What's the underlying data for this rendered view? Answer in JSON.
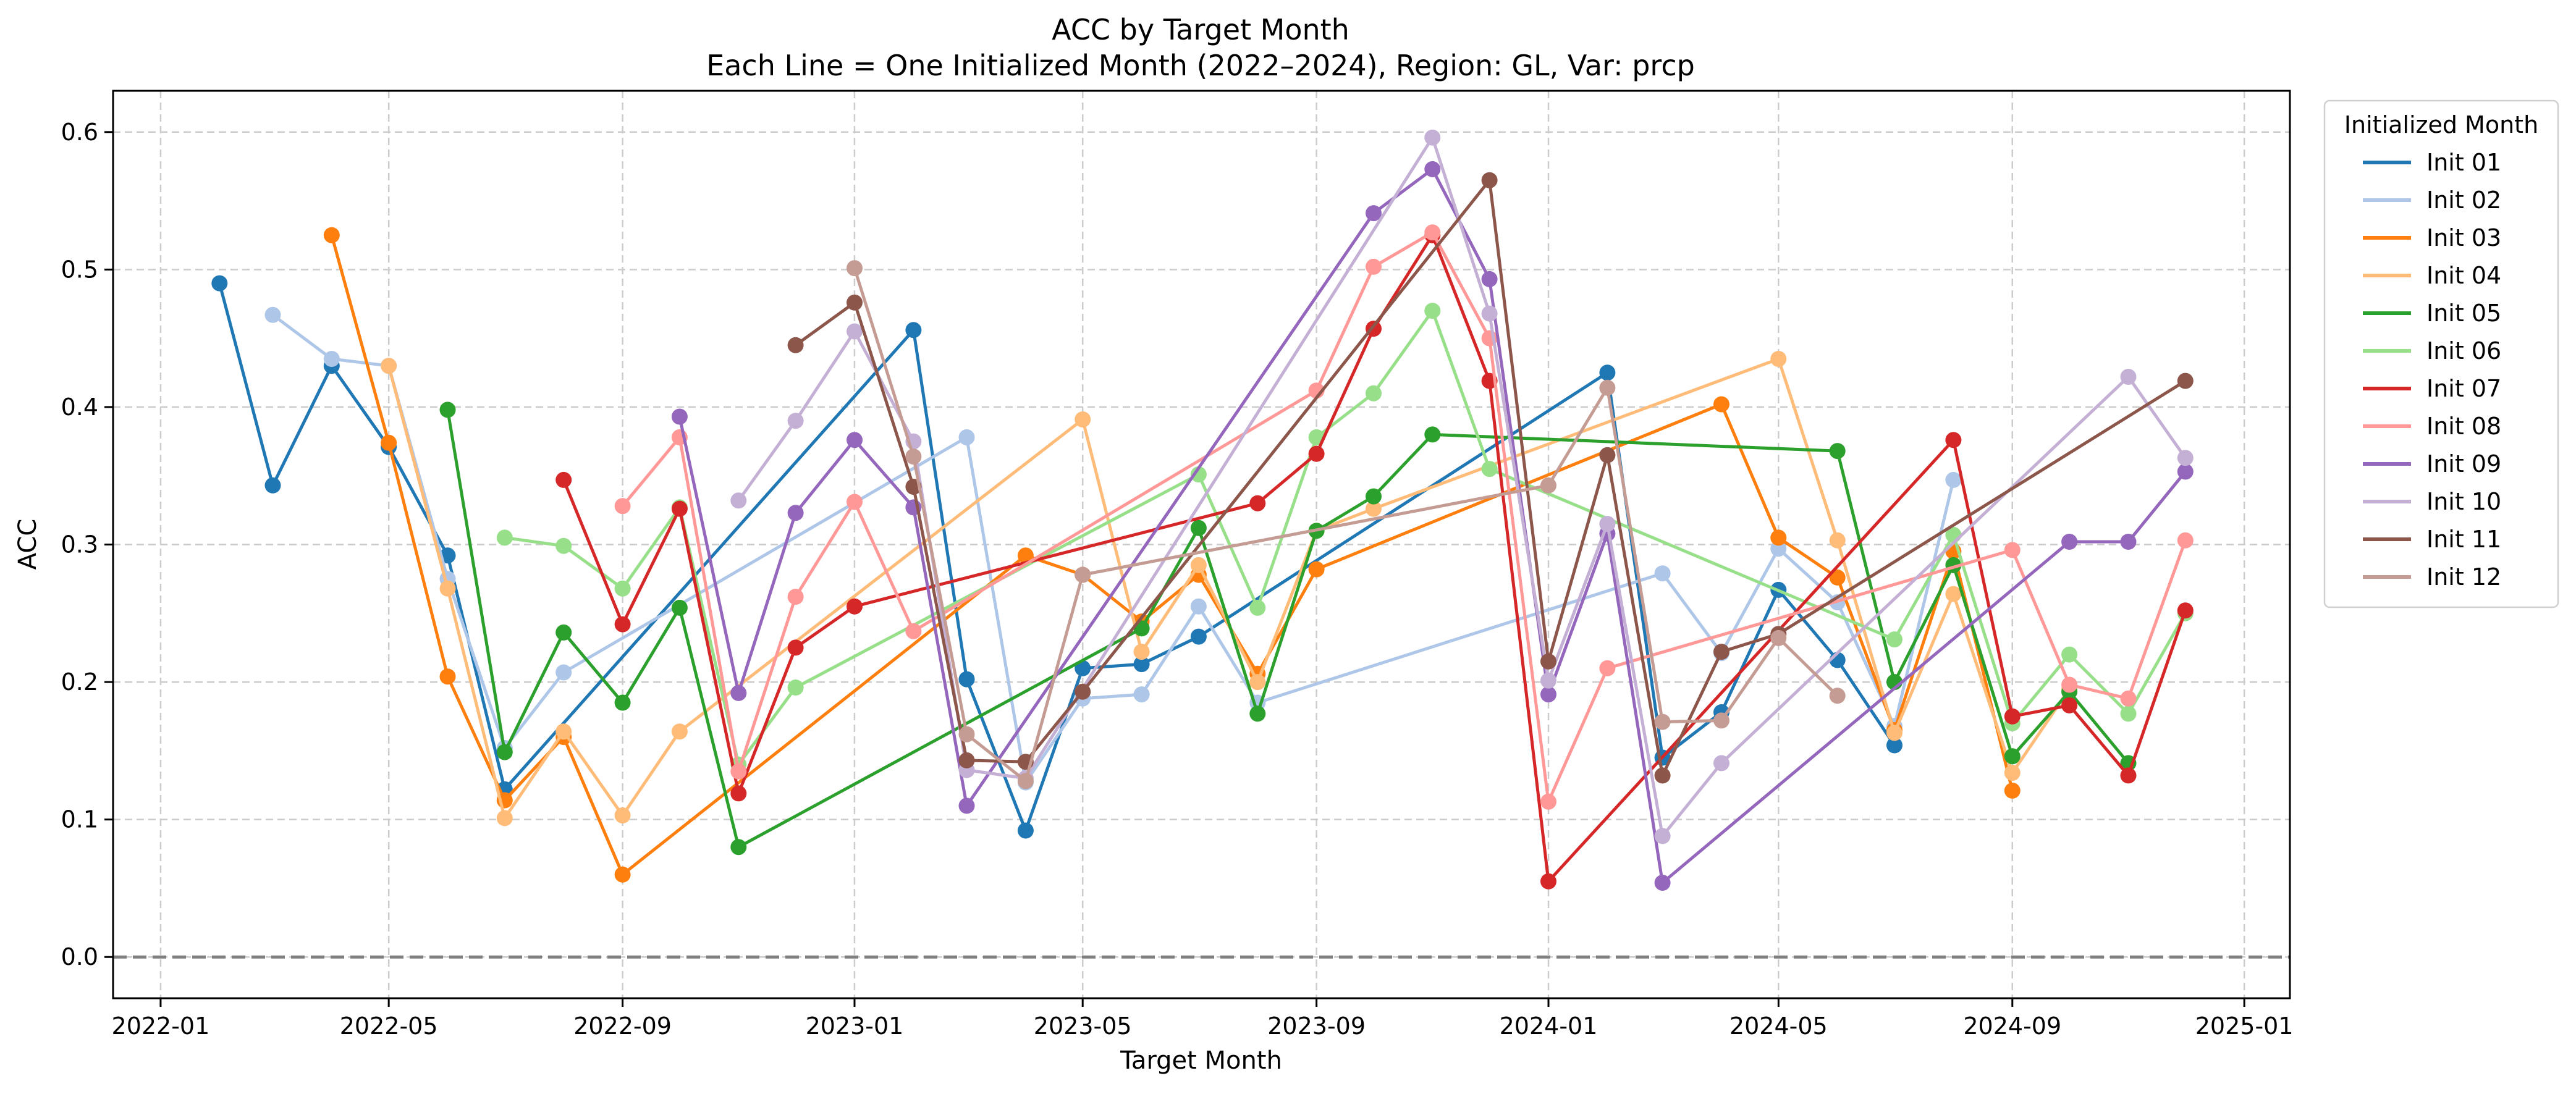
{
  "chart_data": {
    "type": "line",
    "title": "ACC by Target Month",
    "subtitle": "Each Line = One Initialized Month (2022–2024), Region: GL, Var: prcp",
    "xlabel": "Target Month",
    "ylabel": "ACC",
    "xlim": [
      "2021-12-07",
      "2025-01-25"
    ],
    "ylim": [
      -0.03,
      0.63
    ],
    "x_ticks": [
      "2022-01",
      "2022-05",
      "2022-09",
      "2023-01",
      "2023-05",
      "2023-09",
      "2024-01",
      "2024-05",
      "2024-09",
      "2025-01"
    ],
    "y_ticks": [
      "0.0",
      "0.1",
      "0.2",
      "0.3",
      "0.4",
      "0.5",
      "0.6"
    ],
    "grid": true,
    "zero_line": true,
    "legend": {
      "title": "Initialized Month",
      "position": "outside-top-right"
    },
    "series": [
      {
        "name": "Init 01",
        "color": "#1f77b4",
        "points": [
          [
            "2022-02",
            0.49
          ],
          [
            "2022-03",
            0.343
          ],
          [
            "2022-04",
            0.43
          ],
          [
            "2022-05",
            0.371
          ],
          [
            "2022-06",
            0.292
          ],
          [
            "2022-07",
            0.122
          ],
          [
            "2023-02",
            0.456
          ],
          [
            "2023-03",
            0.202
          ],
          [
            "2023-04",
            0.092
          ],
          [
            "2023-05",
            0.21
          ],
          [
            "2023-06",
            0.213
          ],
          [
            "2023-07",
            0.233
          ],
          [
            "2024-02",
            0.425
          ],
          [
            "2024-03",
            0.145
          ],
          [
            "2024-04",
            0.178
          ],
          [
            "2024-05",
            0.267
          ],
          [
            "2024-06",
            0.216
          ],
          [
            "2024-07",
            0.154
          ]
        ]
      },
      {
        "name": "Init 02",
        "color": "#aec7e8",
        "points": [
          [
            "2022-03",
            0.467
          ],
          [
            "2022-04",
            0.435
          ],
          [
            "2022-05",
            0.43
          ],
          [
            "2022-06",
            0.275
          ],
          [
            "2022-07",
            0.152
          ],
          [
            "2022-08",
            0.207
          ],
          [
            "2023-03",
            0.378
          ],
          [
            "2023-04",
            0.127
          ],
          [
            "2023-05",
            0.188
          ],
          [
            "2023-06",
            0.191
          ],
          [
            "2023-07",
            0.255
          ],
          [
            "2023-08",
            0.185
          ],
          [
            "2024-03",
            0.279
          ],
          [
            "2024-04",
            0.221
          ],
          [
            "2024-05",
            0.297
          ],
          [
            "2024-06",
            0.258
          ],
          [
            "2024-07",
            0.168
          ],
          [
            "2024-08",
            0.347
          ]
        ]
      },
      {
        "name": "Init 03",
        "color": "#ff7f0e",
        "points": [
          [
            "2022-04",
            0.525
          ],
          [
            "2022-05",
            0.374
          ],
          [
            "2022-06",
            0.204
          ],
          [
            "2022-07",
            0.114
          ],
          [
            "2022-08",
            0.16
          ],
          [
            "2022-09",
            0.06
          ],
          [
            "2023-04",
            0.292
          ],
          [
            "2023-05",
            0.278
          ],
          [
            "2023-06",
            0.244
          ],
          [
            "2023-07",
            0.278
          ],
          [
            "2023-08",
            0.206
          ],
          [
            "2023-09",
            0.282
          ],
          [
            "2024-04",
            0.402
          ],
          [
            "2024-05",
            0.305
          ],
          [
            "2024-06",
            0.276
          ],
          [
            "2024-07",
            0.165
          ],
          [
            "2024-08",
            0.295
          ],
          [
            "2024-09",
            0.121
          ]
        ]
      },
      {
        "name": "Init 04",
        "color": "#ffbb78",
        "points": [
          [
            "2022-05",
            0.43
          ],
          [
            "2022-06",
            0.268
          ],
          [
            "2022-07",
            0.101
          ],
          [
            "2022-08",
            0.164
          ],
          [
            "2022-09",
            0.103
          ],
          [
            "2022-10",
            0.164
          ],
          [
            "2023-05",
            0.391
          ],
          [
            "2023-06",
            0.222
          ],
          [
            "2023-07",
            0.285
          ],
          [
            "2023-08",
            0.2
          ],
          [
            "2023-09",
            0.31
          ],
          [
            "2023-10",
            0.326
          ],
          [
            "2024-05",
            0.435
          ],
          [
            "2024-06",
            0.303
          ],
          [
            "2024-07",
            0.163
          ],
          [
            "2024-08",
            0.264
          ],
          [
            "2024-09",
            0.134
          ],
          [
            "2024-10",
            0.195
          ]
        ]
      },
      {
        "name": "Init 05",
        "color": "#2ca02c",
        "points": [
          [
            "2022-06",
            0.398
          ],
          [
            "2022-07",
            0.149
          ],
          [
            "2022-08",
            0.236
          ],
          [
            "2022-09",
            0.185
          ],
          [
            "2022-10",
            0.254
          ],
          [
            "2022-11",
            0.08
          ],
          [
            "2023-06",
            0.239
          ],
          [
            "2023-07",
            0.312
          ],
          [
            "2023-08",
            0.177
          ],
          [
            "2023-09",
            0.31
          ],
          [
            "2023-10",
            0.335
          ],
          [
            "2023-11",
            0.38
          ],
          [
            "2024-06",
            0.368
          ],
          [
            "2024-07",
            0.2
          ],
          [
            "2024-08",
            0.285
          ],
          [
            "2024-09",
            0.146
          ],
          [
            "2024-10",
            0.193
          ],
          [
            "2024-11",
            0.141
          ]
        ]
      },
      {
        "name": "Init 06",
        "color": "#98df8a",
        "points": [
          [
            "2022-07",
            0.305
          ],
          [
            "2022-08",
            0.299
          ],
          [
            "2022-09",
            0.268
          ],
          [
            "2022-10",
            0.327
          ],
          [
            "2022-11",
            0.14
          ],
          [
            "2022-12",
            0.196
          ],
          [
            "2023-07",
            0.351
          ],
          [
            "2023-08",
            0.254
          ],
          [
            "2023-09",
            0.378
          ],
          [
            "2023-10",
            0.41
          ],
          [
            "2023-11",
            0.47
          ],
          [
            "2023-12",
            0.355
          ],
          [
            "2024-07",
            0.231
          ],
          [
            "2024-08",
            0.307
          ],
          [
            "2024-09",
            0.17
          ],
          [
            "2024-10",
            0.22
          ],
          [
            "2024-11",
            0.177
          ],
          [
            "2024-12",
            0.25
          ]
        ]
      },
      {
        "name": "Init 07",
        "color": "#d62728",
        "points": [
          [
            "2022-08",
            0.347
          ],
          [
            "2022-09",
            0.242
          ],
          [
            "2022-10",
            0.326
          ],
          [
            "2022-11",
            0.119
          ],
          [
            "2022-12",
            0.225
          ],
          [
            "2023-01",
            0.255
          ],
          [
            "2023-08",
            0.33
          ],
          [
            "2023-09",
            0.366
          ],
          [
            "2023-10",
            0.457
          ],
          [
            "2023-11",
            0.525
          ],
          [
            "2023-12",
            0.419
          ],
          [
            "2024-01",
            0.055
          ],
          [
            "2024-08",
            0.376
          ],
          [
            "2024-09",
            0.175
          ],
          [
            "2024-10",
            0.183
          ],
          [
            "2024-11",
            0.132
          ],
          [
            "2024-12",
            0.252
          ]
        ]
      },
      {
        "name": "Init 08",
        "color": "#ff9896",
        "points": [
          [
            "2022-09",
            0.328
          ],
          [
            "2022-10",
            0.378
          ],
          [
            "2022-11",
            0.135
          ],
          [
            "2022-12",
            0.262
          ],
          [
            "2023-01",
            0.331
          ],
          [
            "2023-02",
            0.237
          ],
          [
            "2023-09",
            0.412
          ],
          [
            "2023-10",
            0.502
          ],
          [
            "2023-11",
            0.527
          ],
          [
            "2023-12",
            0.45
          ],
          [
            "2024-01",
            0.113
          ],
          [
            "2024-02",
            0.21
          ],
          [
            "2024-09",
            0.296
          ],
          [
            "2024-10",
            0.198
          ],
          [
            "2024-11",
            0.188
          ],
          [
            "2024-12",
            0.303
          ]
        ]
      },
      {
        "name": "Init 09",
        "color": "#9467bd",
        "points": [
          [
            "2022-10",
            0.393
          ],
          [
            "2022-11",
            0.192
          ],
          [
            "2022-12",
            0.323
          ],
          [
            "2023-01",
            0.376
          ],
          [
            "2023-02",
            0.327
          ],
          [
            "2023-03",
            0.11
          ],
          [
            "2023-10",
            0.541
          ],
          [
            "2023-11",
            0.573
          ],
          [
            "2023-12",
            0.493
          ],
          [
            "2024-01",
            0.191
          ],
          [
            "2024-02",
            0.308
          ],
          [
            "2024-03",
            0.054
          ],
          [
            "2024-10",
            0.302
          ],
          [
            "2024-11",
            0.302
          ],
          [
            "2024-12",
            0.353
          ]
        ]
      },
      {
        "name": "Init 10",
        "color": "#c5b0d5",
        "points": [
          [
            "2022-11",
            0.332
          ],
          [
            "2022-12",
            0.39
          ],
          [
            "2023-01",
            0.455
          ],
          [
            "2023-02",
            0.375
          ],
          [
            "2023-03",
            0.136
          ],
          [
            "2023-04",
            0.13
          ],
          [
            "2023-11",
            0.596
          ],
          [
            "2023-12",
            0.468
          ],
          [
            "2024-01",
            0.201
          ],
          [
            "2024-02",
            0.315
          ],
          [
            "2024-03",
            0.088
          ],
          [
            "2024-04",
            0.141
          ],
          [
            "2024-11",
            0.422
          ],
          [
            "2024-12",
            0.363
          ]
        ]
      },
      {
        "name": "Init 11",
        "color": "#8c564b",
        "points": [
          [
            "2022-12",
            0.445
          ],
          [
            "2023-01",
            0.476
          ],
          [
            "2023-02",
            0.342
          ],
          [
            "2023-03",
            0.143
          ],
          [
            "2023-04",
            0.142
          ],
          [
            "2023-05",
            0.193
          ],
          [
            "2023-12",
            0.565
          ],
          [
            "2024-01",
            0.215
          ],
          [
            "2024-02",
            0.365
          ],
          [
            "2024-03",
            0.132
          ],
          [
            "2024-04",
            0.222
          ],
          [
            "2024-05",
            0.235
          ],
          [
            "2024-12",
            0.419
          ]
        ]
      },
      {
        "name": "Init 12",
        "color": "#c49c94",
        "points": [
          [
            "2023-01",
            0.501
          ],
          [
            "2023-02",
            0.364
          ],
          [
            "2023-03",
            0.162
          ],
          [
            "2023-04",
            0.128
          ],
          [
            "2023-05",
            0.278
          ],
          [
            "2024-01",
            0.343
          ],
          [
            "2024-02",
            0.414
          ],
          [
            "2024-03",
            0.171
          ],
          [
            "2024-04",
            0.172
          ],
          [
            "2024-05",
            0.232
          ],
          [
            "2024-06",
            0.19
          ]
        ]
      }
    ]
  }
}
